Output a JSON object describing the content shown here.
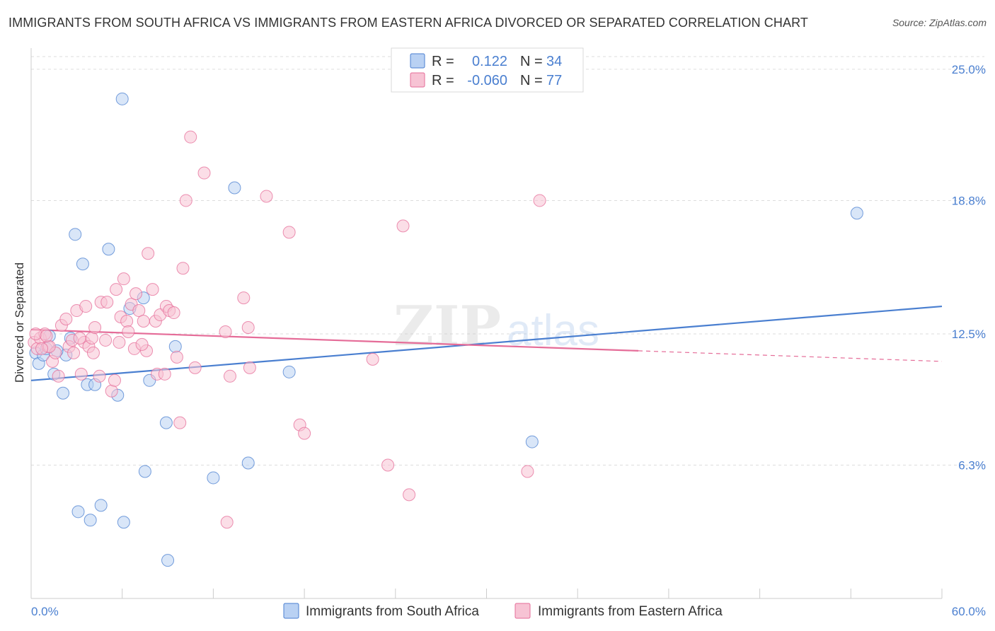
{
  "title": "IMMIGRANTS FROM SOUTH AFRICA VS IMMIGRANTS FROM EASTERN AFRICA DIVORCED OR SEPARATED CORRELATION CHART",
  "source": "Source: ZipAtlas.com",
  "watermark": {
    "zip": "ZIP",
    "atlas": "atlas"
  },
  "legend_top": {
    "rows": [
      {
        "r_label": "R =",
        "r_value": "0.122",
        "n_label": "N =",
        "n_value": "34",
        "color": "#4a7fd0"
      },
      {
        "r_label": "R =",
        "r_value": "-0.060",
        "n_label": "N =",
        "n_value": "77",
        "color": "#e56c98"
      }
    ]
  },
  "chart_data": {
    "type": "scatter",
    "xlabel": "",
    "ylabel": "Divorced or Separated",
    "xlim": [
      0,
      60
    ],
    "ylim": [
      0,
      26
    ],
    "x_tick_labels": [
      {
        "value": 0,
        "label": "0.0%"
      },
      {
        "value": 60,
        "label": "60.0%"
      }
    ],
    "y_tick_labels": [
      {
        "value": 6.3,
        "label": "6.3%"
      },
      {
        "value": 12.5,
        "label": "12.5%"
      },
      {
        "value": 18.8,
        "label": "18.8%"
      },
      {
        "value": 25.0,
        "label": "25.0%"
      }
    ],
    "grid": true,
    "legend_position": "top-center",
    "series": [
      {
        "name": "Immigrants from South Africa",
        "color": "#4a7fd0",
        "fill": "#b9d1f3",
        "trend": {
          "x": [
            0,
            60
          ],
          "y": [
            10.3,
            13.8
          ],
          "dashed_from": null
        },
        "points": [
          [
            0.3,
            11.6
          ],
          [
            0.5,
            11.1
          ],
          [
            0.8,
            11.5
          ],
          [
            1.2,
            12.4
          ],
          [
            1.0,
            11.8
          ],
          [
            1.5,
            10.6
          ],
          [
            2.1,
            9.7
          ],
          [
            2.3,
            11.5
          ],
          [
            2.6,
            12.3
          ],
          [
            2.9,
            17.2
          ],
          [
            3.4,
            15.8
          ],
          [
            3.7,
            10.1
          ],
          [
            4.2,
            10.1
          ],
          [
            5.1,
            16.5
          ],
          [
            5.7,
            9.6
          ],
          [
            6.0,
            23.6
          ],
          [
            6.5,
            13.7
          ],
          [
            7.4,
            14.2
          ],
          [
            7.8,
            10.3
          ],
          [
            8.9,
            8.3
          ],
          [
            9.5,
            11.9
          ],
          [
            12.0,
            5.7
          ],
          [
            13.4,
            19.4
          ],
          [
            14.3,
            6.4
          ],
          [
            17.0,
            10.7
          ],
          [
            33.0,
            7.4
          ],
          [
            54.4,
            18.2
          ],
          [
            3.1,
            4.1
          ],
          [
            3.9,
            3.7
          ],
          [
            4.6,
            4.4
          ],
          [
            6.1,
            3.6
          ],
          [
            7.5,
            6.0
          ],
          [
            9.0,
            1.8
          ],
          [
            1.7,
            11.7
          ]
        ]
      },
      {
        "name": "Immigrants from Eastern Africa",
        "color": "#e56c98",
        "fill": "#f7c3d4",
        "trend": {
          "x": [
            0,
            40
          ],
          "y": [
            12.7,
            11.7
          ],
          "dashed_to_x": 60,
          "dashed_to_y": 11.2
        },
        "points": [
          [
            0.2,
            12.1
          ],
          [
            0.4,
            11.8
          ],
          [
            0.6,
            12.3
          ],
          [
            0.9,
            12.5
          ],
          [
            1.1,
            11.9
          ],
          [
            1.4,
            11.2
          ],
          [
            1.6,
            11.6
          ],
          [
            1.8,
            10.5
          ],
          [
            2.0,
            12.9
          ],
          [
            2.3,
            13.2
          ],
          [
            2.5,
            11.9
          ],
          [
            2.8,
            11.6
          ],
          [
            3.0,
            13.6
          ],
          [
            3.3,
            10.6
          ],
          [
            3.5,
            12.1
          ],
          [
            3.6,
            13.8
          ],
          [
            3.8,
            11.9
          ],
          [
            4.0,
            12.3
          ],
          [
            4.2,
            12.8
          ],
          [
            4.5,
            10.5
          ],
          [
            4.6,
            14.0
          ],
          [
            4.9,
            12.2
          ],
          [
            5.0,
            14.0
          ],
          [
            5.3,
            9.8
          ],
          [
            5.5,
            10.3
          ],
          [
            5.6,
            14.6
          ],
          [
            5.9,
            13.3
          ],
          [
            6.1,
            15.1
          ],
          [
            6.3,
            13.1
          ],
          [
            6.6,
            13.9
          ],
          [
            6.8,
            11.8
          ],
          [
            6.9,
            14.4
          ],
          [
            7.1,
            13.6
          ],
          [
            7.4,
            13.1
          ],
          [
            7.6,
            11.7
          ],
          [
            7.7,
            16.3
          ],
          [
            8.0,
            14.6
          ],
          [
            8.2,
            13.1
          ],
          [
            8.3,
            10.6
          ],
          [
            8.5,
            13.4
          ],
          [
            8.8,
            10.6
          ],
          [
            8.9,
            13.8
          ],
          [
            9.1,
            13.6
          ],
          [
            9.4,
            13.5
          ],
          [
            9.6,
            11.4
          ],
          [
            9.8,
            8.3
          ],
          [
            10.0,
            15.6
          ],
          [
            10.2,
            18.8
          ],
          [
            10.5,
            21.8
          ],
          [
            10.8,
            10.9
          ],
          [
            11.4,
            20.1
          ],
          [
            12.8,
            12.6
          ],
          [
            13.1,
            10.5
          ],
          [
            14.0,
            14.2
          ],
          [
            14.3,
            12.8
          ],
          [
            14.4,
            10.9
          ],
          [
            15.5,
            19.0
          ],
          [
            17.0,
            17.3
          ],
          [
            17.7,
            8.2
          ],
          [
            18.0,
            7.8
          ],
          [
            22.5,
            11.3
          ],
          [
            23.5,
            6.3
          ],
          [
            24.5,
            17.6
          ],
          [
            24.9,
            4.9
          ],
          [
            32.7,
            6.0
          ],
          [
            33.5,
            18.8
          ],
          [
            12.9,
            3.6
          ],
          [
            0.3,
            12.5
          ],
          [
            1.2,
            11.9
          ],
          [
            2.7,
            12.2
          ],
          [
            4.1,
            11.6
          ],
          [
            5.8,
            12.1
          ],
          [
            7.3,
            12.0
          ],
          [
            1.0,
            12.4
          ],
          [
            0.7,
            11.8
          ],
          [
            3.2,
            12.3
          ],
          [
            6.4,
            12.6
          ]
        ]
      }
    ]
  },
  "bottom_legend": [
    {
      "label": "Immigrants from South Africa",
      "color": "#4a7fd0",
      "fill": "#b9d1f3"
    },
    {
      "label": "Immigrants from Eastern Africa",
      "color": "#e56c98",
      "fill": "#f7c3d4"
    }
  ]
}
